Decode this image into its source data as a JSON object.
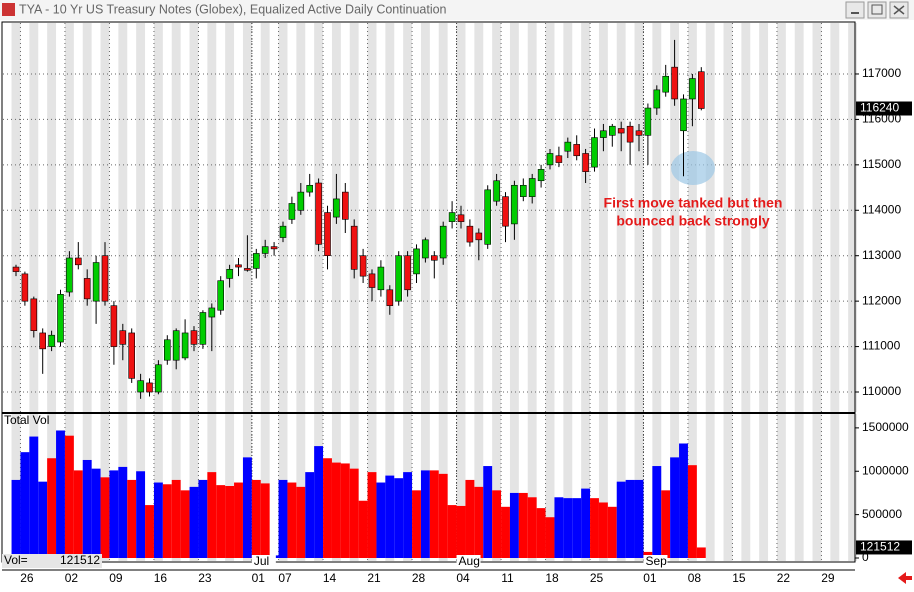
{
  "window": {
    "title": "TYA - 10 Yr US Treasury Notes (Globex), Equalized Active Daily Continuation"
  },
  "chart_data": [
    {
      "type": "candlestick",
      "annotation": [
        "First move tanked but then",
        "bounced back strongly"
      ],
      "categories": [
        null,
        "26",
        null,
        null,
        null,
        null,
        "02",
        null,
        null,
        null,
        null,
        "09",
        null,
        null,
        null,
        null,
        "16",
        null,
        null,
        null,
        null,
        "23",
        null,
        null,
        null,
        null,
        null,
        "01",
        null,
        null,
        "07",
        null,
        null,
        null,
        null,
        "14",
        null,
        null,
        null,
        null,
        "21",
        null,
        null,
        null,
        null,
        "28",
        null,
        null,
        null,
        null,
        "04",
        null,
        null,
        null,
        null,
        "11",
        null,
        null,
        null,
        null,
        "18",
        null,
        null,
        null,
        null,
        "25",
        null,
        null,
        null,
        null,
        null,
        "01",
        null,
        null,
        null,
        null,
        "08",
        null,
        null,
        null,
        null,
        "15",
        null,
        null,
        null,
        null,
        "22",
        null,
        null,
        null,
        null,
        "29",
        null,
        null,
        null
      ],
      "months": [
        null,
        null,
        null,
        null,
        null,
        null,
        null,
        null,
        null,
        null,
        null,
        null,
        null,
        null,
        null,
        null,
        null,
        null,
        null,
        null,
        null,
        null,
        null,
        null,
        null,
        null,
        null,
        "Jul",
        null,
        null,
        null,
        null,
        null,
        null,
        null,
        null,
        null,
        null,
        null,
        null,
        null,
        null,
        null,
        null,
        null,
        null,
        null,
        null,
        null,
        null,
        "Aug",
        null,
        null,
        null,
        null,
        null,
        null,
        null,
        null,
        null,
        null,
        null,
        null,
        null,
        null,
        null,
        null,
        null,
        null,
        null,
        null,
        "Sep",
        null,
        null,
        null,
        null,
        null,
        null,
        null,
        null,
        null,
        null,
        null,
        null,
        null,
        null,
        null,
        null,
        null,
        null,
        null,
        null,
        null,
        null,
        null
      ],
      "open": [
        112750,
        112600,
        112050,
        111300,
        111000,
        111100,
        112200,
        112950,
        112500,
        112000,
        113000,
        111900,
        111350,
        111300,
        110000,
        110200,
        110000,
        110700,
        110700,
        110750,
        111350,
        111050,
        111650,
        111800,
        112500,
        112800,
        112720,
        112720,
        113050,
        113200,
        113400,
        113800,
        114000,
        114400,
        114600,
        113950,
        113850,
        114400,
        113650,
        113000,
        112600,
        112250,
        112250,
        112000,
        113000,
        112600,
        112950,
        113000,
        112950,
        113750,
        113900,
        113650,
        113500,
        113250,
        114200,
        114300,
        113700,
        114300,
        114300,
        114650,
        115000,
        115200,
        115300,
        115450,
        115250,
        114950,
        115600,
        115650,
        115800,
        115850,
        115750,
        115650,
        116250,
        116600,
        117150,
        115750,
        116450,
        117050,
        null,
        null,
        null,
        null,
        null,
        null,
        null,
        null,
        null,
        null,
        null,
        null,
        null,
        null,
        null,
        null,
        null
      ],
      "high": [
        112800,
        112650,
        112100,
        111400,
        111350,
        112250,
        113100,
        113300,
        112700,
        113000,
        113300,
        112000,
        111500,
        111400,
        110400,
        110300,
        110700,
        111250,
        111400,
        111600,
        111450,
        111800,
        111950,
        112550,
        112800,
        112950,
        113450,
        113150,
        113350,
        113300,
        113750,
        114300,
        114600,
        114800,
        114700,
        114100,
        114800,
        114600,
        113800,
        113150,
        112700,
        112900,
        112350,
        113100,
        113100,
        113250,
        113400,
        113100,
        113750,
        114200,
        114100,
        113800,
        113600,
        114550,
        114800,
        114400,
        114650,
        114700,
        114800,
        115000,
        115350,
        115400,
        115600,
        115650,
        115350,
        115800,
        115900,
        115900,
        115950,
        115950,
        115900,
        116350,
        116750,
        117200,
        117750,
        116550,
        117000,
        117150,
        null,
        null,
        null,
        null,
        null,
        null,
        null,
        null,
        null,
        null,
        null,
        null,
        null,
        null,
        null,
        null,
        null
      ],
      "low": [
        112550,
        111900,
        111200,
        110400,
        110900,
        111000,
        112100,
        112700,
        111900,
        111500,
        111900,
        110600,
        110700,
        110200,
        109850,
        109900,
        109950,
        110600,
        110500,
        110700,
        110900,
        110950,
        110900,
        111700,
        112300,
        112550,
        112650,
        112500,
        112950,
        113000,
        113300,
        113700,
        113900,
        114300,
        113100,
        112700,
        113700,
        113500,
        112500,
        112400,
        112000,
        112100,
        111700,
        111900,
        112100,
        112400,
        112850,
        112500,
        112800,
        113600,
        113600,
        113200,
        112900,
        113150,
        114100,
        113300,
        113350,
        114200,
        114150,
        114500,
        114900,
        114950,
        115150,
        115100,
        114600,
        114850,
        115300,
        115400,
        115300,
        115000,
        115300,
        115000,
        116100,
        116500,
        116300,
        114750,
        115850,
        116200,
        null,
        null,
        null,
        null,
        null,
        null,
        null,
        null,
        null,
        null,
        null,
        null,
        null,
        null,
        null,
        null,
        null
      ],
      "close": [
        112650,
        112000,
        111350,
        110950,
        111250,
        112150,
        112950,
        112800,
        112050,
        112850,
        112000,
        111000,
        111050,
        110300,
        110250,
        110000,
        110600,
        111150,
        111350,
        111300,
        111050,
        111750,
        111850,
        112450,
        112700,
        112750,
        112680,
        113050,
        113200,
        113150,
        113650,
        114150,
        114400,
        114550,
        113250,
        113000,
        114250,
        113800,
        112700,
        112550,
        112300,
        112750,
        111900,
        113000,
        112250,
        113150,
        113350,
        112900,
        113650,
        113950,
        113750,
        113300,
        113350,
        114450,
        114650,
        113650,
        114550,
        114550,
        114700,
        114900,
        115250,
        115050,
        115500,
        115200,
        114850,
        115600,
        115750,
        115850,
        115700,
        115500,
        115650,
        116250,
        116650,
        116950,
        116450,
        116450,
        116900,
        116240,
        null,
        null,
        null,
        null,
        null,
        null,
        null,
        null,
        null,
        null,
        null,
        null,
        null,
        null,
        null,
        null,
        null
      ],
      "up_color": "#00cc00",
      "down_color": "#ee1111",
      "ylim": [
        109560,
        118100
      ],
      "yticks": [
        110000,
        111000,
        112000,
        113000,
        114000,
        115000,
        116000,
        117000
      ],
      "grid": true
    },
    {
      "type": "bar",
      "title": "Total Vol",
      "value_prefix": "Vol=",
      "values": [
        900000,
        1220000,
        1400000,
        880000,
        1150000,
        1470000,
        1410000,
        1010000,
        1130000,
        1030000,
        930000,
        1010000,
        1050000,
        900000,
        1000000,
        610000,
        870000,
        850000,
        900000,
        780000,
        820000,
        900000,
        990000,
        840000,
        830000,
        870000,
        1160000,
        900000,
        860000,
        30000,
        900000,
        870000,
        820000,
        990000,
        1290000,
        1150000,
        1100000,
        1090000,
        1030000,
        660000,
        990000,
        870000,
        950000,
        920000,
        990000,
        780000,
        1010000,
        1010000,
        970000,
        610000,
        600000,
        900000,
        820000,
        1060000,
        780000,
        590000,
        750000,
        750000,
        700000,
        575000,
        470000,
        700000,
        690000,
        690000,
        800000,
        690000,
        640000,
        590000,
        880000,
        900000,
        900000,
        70000,
        1060000,
        780000,
        1160000,
        1320000,
        1070000,
        121512,
        null,
        null,
        null,
        null,
        null,
        null,
        null,
        null,
        null,
        null,
        null,
        null,
        null,
        null,
        null,
        null,
        null
      ],
      "colors": [
        "#0000ff",
        "#0000ff",
        "#0000ff",
        "#0000ff",
        "#ff0000",
        "#0000ff",
        "#ff0000",
        "#ff0000",
        "#0000ff",
        "#0000ff",
        "#ff0000",
        "#0000ff",
        "#0000ff",
        "#ff0000",
        "#0000ff",
        "#ff0000",
        "#0000ff",
        "#ff0000",
        "#ff0000",
        "#ff0000",
        "#0000ff",
        "#0000ff",
        "#ff0000",
        "#ff0000",
        "#ff0000",
        "#ff0000",
        "#0000ff",
        "#ff0000",
        "#ff0000",
        "#0000ff",
        "#0000ff",
        "#ff0000",
        "#ff0000",
        "#0000ff",
        "#0000ff",
        "#ff0000",
        "#ff0000",
        "#ff0000",
        "#ff0000",
        "#ff0000",
        "#ff0000",
        "#0000ff",
        "#0000ff",
        "#0000ff",
        "#0000ff",
        "#ff0000",
        "#0000ff",
        "#ff0000",
        "#ff0000",
        "#ff0000",
        "#ff0000",
        "#ff0000",
        "#ff0000",
        "#0000ff",
        "#ff0000",
        "#ff0000",
        "#0000ff",
        "#ff0000",
        "#ff0000",
        "#ff0000",
        "#ff0000",
        "#0000ff",
        "#0000ff",
        "#0000ff",
        "#0000ff",
        "#ff0000",
        "#ff0000",
        "#ff0000",
        "#0000ff",
        "#0000ff",
        "#0000ff",
        "#ff0000",
        "#0000ff",
        "#ff0000",
        "#0000ff",
        "#0000ff",
        "#ff0000",
        "#ff0000",
        null,
        null,
        null,
        null,
        null,
        null,
        null,
        null,
        null,
        null,
        null,
        null,
        null,
        null,
        null,
        null,
        null
      ],
      "ylim": [
        0,
        1660000
      ],
      "yticks": [
        0,
        500000,
        1000000,
        1500000
      ]
    }
  ]
}
